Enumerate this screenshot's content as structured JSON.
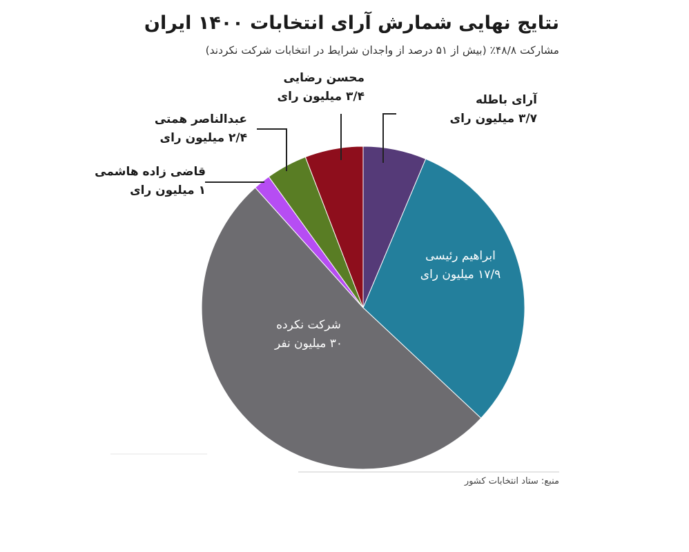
{
  "chart_data": {
    "type": "pie",
    "title": "نتایج نهایی شمارش آرای انتخابات ۱۴۰۰ ایران",
    "subtitle": "مشارکت ۴۸/۸٪ (بیش از ۵۱ درصد از واجدان شرایط در انتخابات شرکت نکردند)",
    "source": "منبع: ستاد انتخابات کشور",
    "unit": "million",
    "slices": [
      {
        "name": "آرای باطله",
        "value": 3.7,
        "value_label": "۳/۷ میلیون رای",
        "color": "#553a78"
      },
      {
        "name": "ابراهیم رئیسی",
        "value": 17.9,
        "value_label": "۱۷/۹ میلیون رای",
        "color": "#237f9c"
      },
      {
        "name": "شرکت نکرده",
        "value": 30,
        "value_label": "۳۰ میلیون نفر",
        "color": "#6d6c70"
      },
      {
        "name": "قاضی زاده هاشمی",
        "value": 1,
        "value_label": "۱ میلیون رای",
        "color": "#b64df3"
      },
      {
        "name": "عبدالناصر همتی",
        "value": 2.4,
        "value_label": "۲/۴ میلیون رای",
        "color": "#597d24"
      },
      {
        "name": "محسن رضایی",
        "value": 3.4,
        "value_label": "۳/۴ میلیون رای",
        "color": "#8e0e1c"
      }
    ]
  }
}
